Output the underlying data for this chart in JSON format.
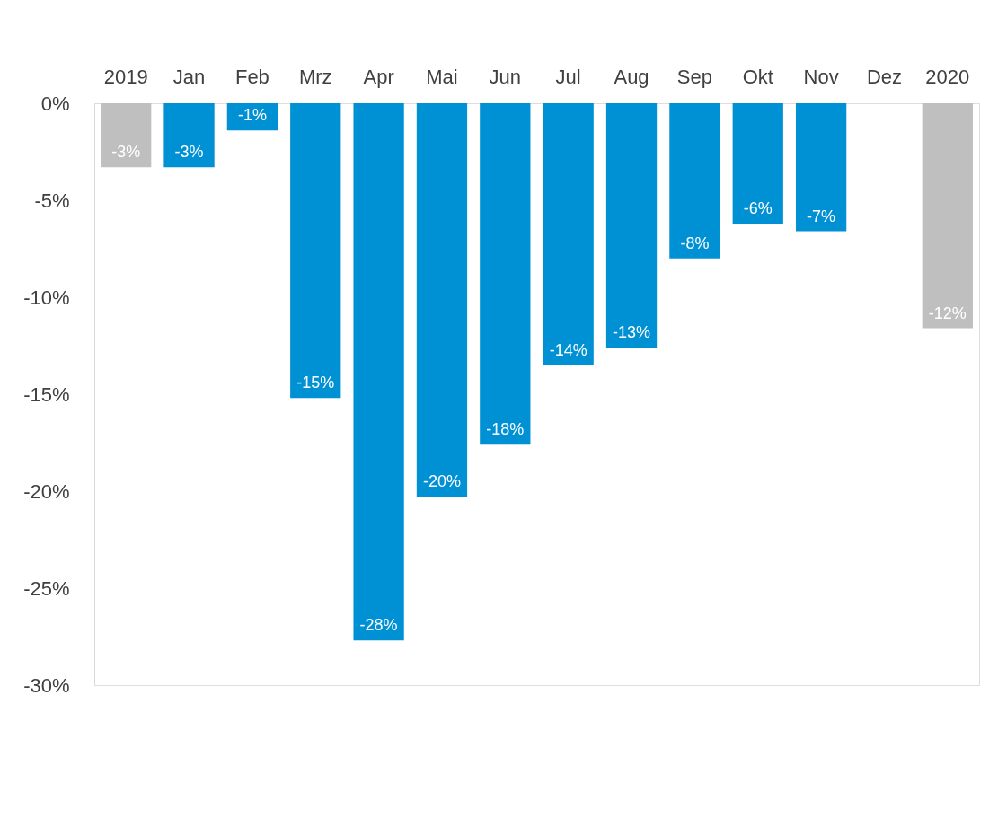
{
  "chart_data": {
    "type": "bar",
    "categories": [
      "2019",
      "Jan",
      "Feb",
      "Mrz",
      "Apr",
      "Mai",
      "Jun",
      "Jul",
      "Aug",
      "Sep",
      "Okt",
      "Nov",
      "Dez",
      "2020"
    ],
    "values": [
      -3.3,
      -3.3,
      -1.4,
      -15.2,
      -27.7,
      -20.3,
      -17.6,
      -13.5,
      -12.6,
      -8.0,
      -6.2,
      -6.6,
      null,
      -11.6
    ],
    "colors": [
      "#bfbfbf",
      "#0091d5",
      "#0091d5",
      "#0091d5",
      "#0091d5",
      "#0091d5",
      "#0091d5",
      "#0091d5",
      "#0091d5",
      "#0091d5",
      "#0091d5",
      "#0091d5",
      "#0091d5",
      "#bfbfbf"
    ],
    "value_labels": [
      "-3%",
      "-3%",
      "-1%",
      "-15%",
      "-28%",
      "-20%",
      "-18%",
      "-14%",
      "-13%",
      "-8%",
      "-6%",
      "-7%",
      null,
      "-12%"
    ],
    "ylim": [
      -30,
      0
    ],
    "yticks": [
      {
        "value": 0,
        "label": "0%"
      },
      {
        "value": -5,
        "label": "-5%"
      },
      {
        "value": -10,
        "label": "-10%"
      },
      {
        "value": -15,
        "label": "-15%"
      },
      {
        "value": -20,
        "label": "-20%"
      },
      {
        "value": -25,
        "label": "-25%"
      },
      {
        "value": -30,
        "label": "-30%"
      }
    ],
    "grid": false
  }
}
